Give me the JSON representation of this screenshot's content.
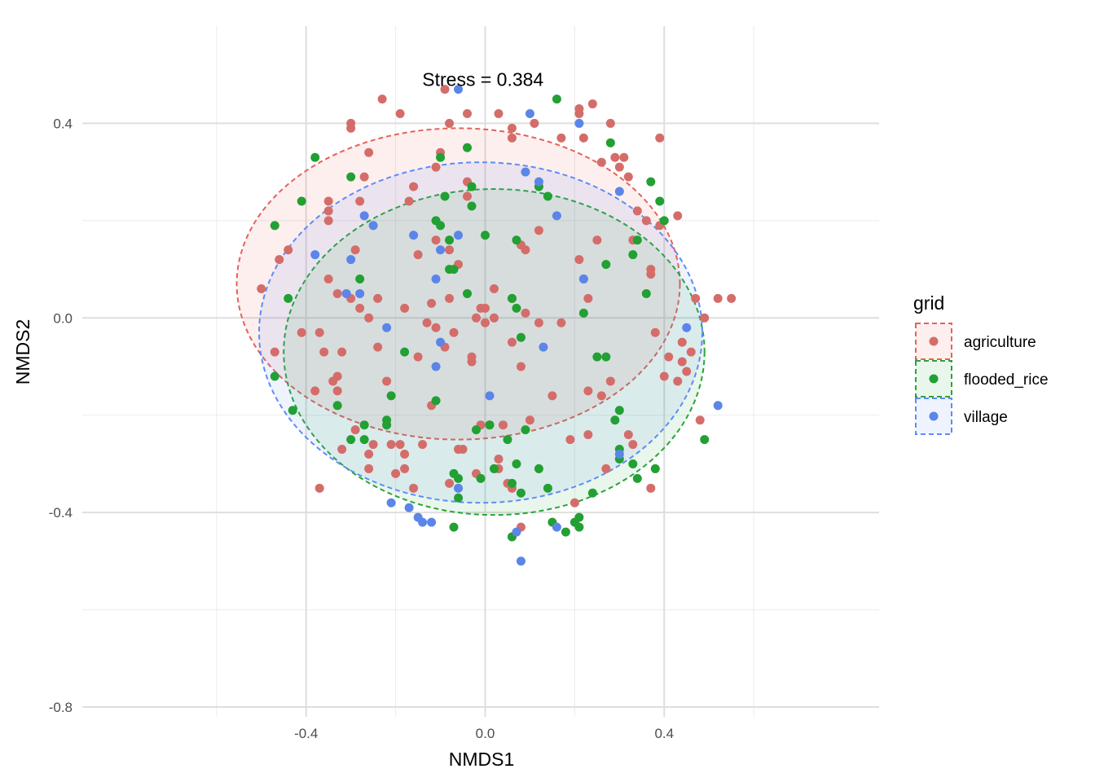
{
  "chart_data": {
    "type": "scatter",
    "xlabel": "NMDS1",
    "ylabel": "NMDS2",
    "xlim": [
      -0.9,
      0.88
    ],
    "ylim": [
      -0.82,
      0.6
    ],
    "x_ticks": [
      -0.4,
      0.0,
      0.4
    ],
    "y_ticks": [
      -0.8,
      -0.4,
      0.0,
      0.4
    ],
    "x_tick_labels": [
      "-0.4",
      "0.0",
      "0.4"
    ],
    "y_tick_labels": [
      "-0.8",
      "-0.4",
      "0.0",
      "0.4"
    ],
    "grid": true,
    "annotation": "Stress = 0.384",
    "annotation_pos": {
      "x": -0.005,
      "y": 0.49
    },
    "legend": {
      "title": "grid",
      "position": "right"
    },
    "series": [
      {
        "name": "agriculture",
        "color": "#e6615a",
        "point_color": "#d46d6a",
        "ellipse": {
          "cx": -0.06,
          "cy": 0.07,
          "rx": 0.99,
          "ry": 0.64
        },
        "points": [
          [
            -0.5,
            0.06
          ],
          [
            -0.47,
            -0.07
          ],
          [
            -0.46,
            0.12
          ],
          [
            -0.44,
            0.14
          ],
          [
            -0.41,
            -0.03
          ],
          [
            -0.38,
            -0.15
          ],
          [
            -0.37,
            -0.35
          ],
          [
            -0.37,
            -0.03
          ],
          [
            -0.36,
            -0.07
          ],
          [
            -0.35,
            0.08
          ],
          [
            -0.35,
            0.22
          ],
          [
            -0.35,
            0.24
          ],
          [
            -0.35,
            0.2
          ],
          [
            -0.34,
            -0.13
          ],
          [
            -0.33,
            -0.12
          ],
          [
            -0.33,
            -0.15
          ],
          [
            -0.33,
            0.05
          ],
          [
            -0.32,
            -0.07
          ],
          [
            -0.32,
            -0.27
          ],
          [
            -0.3,
            0.4
          ],
          [
            -0.3,
            0.39
          ],
          [
            -0.3,
            0.04
          ],
          [
            -0.29,
            0.14
          ],
          [
            -0.29,
            -0.23
          ],
          [
            -0.28,
            0.02
          ],
          [
            -0.28,
            0.24
          ],
          [
            -0.27,
            0.29
          ],
          [
            -0.26,
            -0.28
          ],
          [
            -0.26,
            -0.31
          ],
          [
            -0.26,
            0.34
          ],
          [
            -0.26,
            0.0
          ],
          [
            -0.25,
            -0.26
          ],
          [
            -0.24,
            -0.06
          ],
          [
            -0.24,
            0.04
          ],
          [
            -0.23,
            0.45
          ],
          [
            -0.22,
            -0.13
          ],
          [
            -0.21,
            -0.26
          ],
          [
            -0.2,
            -0.32
          ],
          [
            -0.19,
            -0.26
          ],
          [
            -0.19,
            0.42
          ],
          [
            -0.18,
            -0.31
          ],
          [
            -0.18,
            0.02
          ],
          [
            -0.18,
            -0.28
          ],
          [
            -0.17,
            0.24
          ],
          [
            -0.16,
            -0.35
          ],
          [
            -0.16,
            0.27
          ],
          [
            -0.15,
            0.13
          ],
          [
            -0.15,
            -0.08
          ],
          [
            -0.14,
            -0.26
          ],
          [
            -0.13,
            -0.01
          ],
          [
            -0.12,
            -0.18
          ],
          [
            -0.12,
            0.03
          ],
          [
            -0.11,
            0.16
          ],
          [
            -0.11,
            -0.02
          ],
          [
            -0.11,
            0.31
          ],
          [
            -0.1,
            0.34
          ],
          [
            -0.09,
            -0.06
          ],
          [
            -0.09,
            0.47
          ],
          [
            -0.08,
            0.4
          ],
          [
            -0.08,
            -0.34
          ],
          [
            -0.08,
            0.14
          ],
          [
            -0.08,
            0.04
          ],
          [
            -0.07,
            -0.03
          ],
          [
            -0.06,
            0.11
          ],
          [
            -0.06,
            -0.27
          ],
          [
            -0.05,
            -0.27
          ],
          [
            -0.04,
            0.42
          ],
          [
            -0.04,
            0.28
          ],
          [
            -0.04,
            0.25
          ],
          [
            -0.03,
            -0.09
          ],
          [
            -0.03,
            -0.08
          ],
          [
            -0.02,
            -0.32
          ],
          [
            -0.02,
            0.0
          ],
          [
            -0.01,
            0.02
          ],
          [
            -0.01,
            -0.22
          ],
          [
            0.0,
            0.02
          ],
          [
            0.0,
            -0.01
          ],
          [
            0.01,
            -0.22
          ],
          [
            0.02,
            0.06
          ],
          [
            0.02,
            0.0
          ],
          [
            0.03,
            -0.31
          ],
          [
            0.03,
            -0.29
          ],
          [
            0.03,
            0.42
          ],
          [
            0.04,
            -0.22
          ],
          [
            0.05,
            -0.34
          ],
          [
            0.06,
            -0.35
          ],
          [
            0.06,
            0.04
          ],
          [
            0.06,
            -0.05
          ],
          [
            0.06,
            0.39
          ],
          [
            0.06,
            0.37
          ],
          [
            0.06,
            -0.45
          ],
          [
            0.08,
            -0.1
          ],
          [
            0.08,
            -0.43
          ],
          [
            0.08,
            0.15
          ],
          [
            0.09,
            0.14
          ],
          [
            0.09,
            0.01
          ],
          [
            0.1,
            -0.21
          ],
          [
            0.11,
            0.4
          ],
          [
            0.12,
            -0.01
          ],
          [
            0.12,
            0.18
          ],
          [
            0.15,
            -0.16
          ],
          [
            0.17,
            0.37
          ],
          [
            0.17,
            -0.01
          ],
          [
            0.19,
            -0.25
          ],
          [
            0.2,
            -0.38
          ],
          [
            0.21,
            0.43
          ],
          [
            0.21,
            0.12
          ],
          [
            0.21,
            0.42
          ],
          [
            0.22,
            0.37
          ],
          [
            0.22,
            0.08
          ],
          [
            0.23,
            0.04
          ],
          [
            0.23,
            -0.24
          ],
          [
            0.23,
            -0.15
          ],
          [
            0.24,
            0.44
          ],
          [
            0.25,
            0.16
          ],
          [
            0.26,
            0.32
          ],
          [
            0.26,
            -0.16
          ],
          [
            0.27,
            -0.31
          ],
          [
            0.28,
            0.4
          ],
          [
            0.28,
            -0.13
          ],
          [
            0.29,
            0.33
          ],
          [
            0.3,
            0.31
          ],
          [
            0.31,
            0.33
          ],
          [
            0.32,
            -0.24
          ],
          [
            0.32,
            0.29
          ],
          [
            0.33,
            0.16
          ],
          [
            0.33,
            -0.26
          ],
          [
            0.34,
            0.22
          ],
          [
            0.36,
            0.2
          ],
          [
            0.37,
            0.1
          ],
          [
            0.37,
            -0.35
          ],
          [
            0.37,
            0.09
          ],
          [
            0.38,
            -0.03
          ],
          [
            0.39,
            0.19
          ],
          [
            0.39,
            0.37
          ],
          [
            0.4,
            -0.12
          ],
          [
            0.41,
            -0.08
          ],
          [
            0.43,
            0.21
          ],
          [
            0.43,
            -0.13
          ],
          [
            0.44,
            -0.05
          ],
          [
            0.44,
            -0.09
          ],
          [
            0.45,
            -0.11
          ],
          [
            0.46,
            -0.07
          ],
          [
            0.47,
            0.04
          ],
          [
            0.48,
            -0.21
          ],
          [
            0.49,
            0.0
          ],
          [
            0.52,
            0.04
          ],
          [
            0.55,
            0.04
          ]
        ]
      },
      {
        "name": "flooded_rice",
        "color": "#2aa43a",
        "point_color": "#22a033",
        "ellipse": {
          "cx": 0.02,
          "cy": -0.07,
          "rx": 0.94,
          "ry": 0.67
        },
        "points": [
          [
            -0.47,
            0.19
          ],
          [
            -0.47,
            -0.12
          ],
          [
            -0.44,
            0.04
          ],
          [
            -0.43,
            -0.19
          ],
          [
            -0.41,
            0.24
          ],
          [
            -0.38,
            0.33
          ],
          [
            -0.33,
            -0.18
          ],
          [
            -0.3,
            0.29
          ],
          [
            -0.3,
            -0.25
          ],
          [
            -0.28,
            0.08
          ],
          [
            -0.27,
            -0.22
          ],
          [
            -0.27,
            -0.25
          ],
          [
            -0.22,
            -0.21
          ],
          [
            -0.22,
            -0.22
          ],
          [
            -0.21,
            -0.16
          ],
          [
            -0.18,
            -0.07
          ],
          [
            -0.11,
            0.2
          ],
          [
            -0.11,
            -0.17
          ],
          [
            -0.1,
            0.19
          ],
          [
            -0.1,
            0.33
          ],
          [
            -0.09,
            0.25
          ],
          [
            -0.08,
            0.16
          ],
          [
            -0.08,
            0.1
          ],
          [
            -0.07,
            -0.32
          ],
          [
            -0.07,
            -0.43
          ],
          [
            -0.07,
            0.1
          ],
          [
            -0.06,
            -0.33
          ],
          [
            -0.06,
            -0.37
          ],
          [
            -0.04,
            0.05
          ],
          [
            -0.04,
            0.35
          ],
          [
            -0.03,
            0.27
          ],
          [
            -0.03,
            0.23
          ],
          [
            -0.02,
            -0.23
          ],
          [
            -0.01,
            -0.33
          ],
          [
            0.0,
            0.17
          ],
          [
            0.01,
            -0.22
          ],
          [
            0.02,
            -0.31
          ],
          [
            0.05,
            -0.25
          ],
          [
            0.06,
            0.04
          ],
          [
            0.06,
            -0.34
          ],
          [
            0.06,
            -0.45
          ],
          [
            0.07,
            -0.3
          ],
          [
            0.07,
            0.02
          ],
          [
            0.07,
            0.16
          ],
          [
            0.08,
            -0.04
          ],
          [
            0.08,
            -0.36
          ],
          [
            0.09,
            -0.23
          ],
          [
            0.12,
            0.27
          ],
          [
            0.12,
            -0.31
          ],
          [
            0.14,
            0.25
          ],
          [
            0.14,
            -0.35
          ],
          [
            0.15,
            -0.42
          ],
          [
            0.16,
            0.45
          ],
          [
            0.18,
            -0.44
          ],
          [
            0.2,
            -0.42
          ],
          [
            0.21,
            -0.41
          ],
          [
            0.21,
            -0.43
          ],
          [
            0.22,
            0.01
          ],
          [
            0.24,
            -0.36
          ],
          [
            0.25,
            -0.08
          ],
          [
            0.27,
            -0.08
          ],
          [
            0.27,
            0.11
          ],
          [
            0.28,
            0.36
          ],
          [
            0.29,
            -0.21
          ],
          [
            0.3,
            -0.27
          ],
          [
            0.3,
            -0.29
          ],
          [
            0.3,
            -0.19
          ],
          [
            0.33,
            0.13
          ],
          [
            0.33,
            -0.3
          ],
          [
            0.34,
            0.16
          ],
          [
            0.34,
            -0.33
          ],
          [
            0.36,
            0.05
          ],
          [
            0.37,
            0.28
          ],
          [
            0.38,
            -0.31
          ],
          [
            0.39,
            0.24
          ],
          [
            0.4,
            0.2
          ],
          [
            0.49,
            -0.25
          ]
        ]
      },
      {
        "name": "village",
        "color": "#5d8cf7",
        "point_color": "#5b85e8",
        "ellipse": {
          "cx": -0.01,
          "cy": -0.03,
          "rx": 0.99,
          "ry": 0.7
        },
        "points": [
          [
            -0.38,
            0.13
          ],
          [
            -0.31,
            0.05
          ],
          [
            -0.3,
            0.12
          ],
          [
            -0.28,
            0.05
          ],
          [
            -0.27,
            0.21
          ],
          [
            -0.25,
            0.19
          ],
          [
            -0.22,
            -0.02
          ],
          [
            -0.21,
            -0.38
          ],
          [
            -0.17,
            -0.39
          ],
          [
            -0.16,
            0.17
          ],
          [
            -0.15,
            -0.41
          ],
          [
            -0.14,
            -0.42
          ],
          [
            -0.12,
            -0.42
          ],
          [
            -0.11,
            0.08
          ],
          [
            -0.11,
            -0.1
          ],
          [
            -0.1,
            0.14
          ],
          [
            -0.1,
            -0.05
          ],
          [
            -0.06,
            -0.35
          ],
          [
            -0.06,
            0.47
          ],
          [
            -0.06,
            0.17
          ],
          [
            0.01,
            -0.16
          ],
          [
            0.07,
            -0.44
          ],
          [
            0.08,
            -0.5
          ],
          [
            0.09,
            0.3
          ],
          [
            0.1,
            0.42
          ],
          [
            0.12,
            0.28
          ],
          [
            0.13,
            -0.06
          ],
          [
            0.16,
            0.21
          ],
          [
            0.16,
            -0.43
          ],
          [
            0.21,
            0.4
          ],
          [
            0.22,
            0.08
          ],
          [
            0.3,
            -0.28
          ],
          [
            0.3,
            0.26
          ],
          [
            0.45,
            -0.02
          ],
          [
            0.52,
            -0.18
          ]
        ]
      }
    ]
  }
}
